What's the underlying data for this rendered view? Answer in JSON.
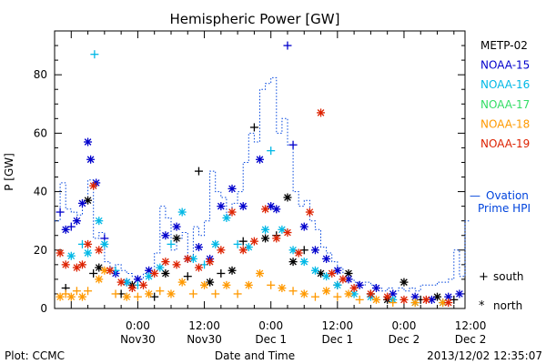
{
  "chart_data": {
    "type": "scatter",
    "title": "Hemispheric Power [GW]",
    "xlabel": "Date and Time",
    "ylabel": "P [GW]",
    "xlim_hours": [
      -15,
      59
    ],
    "ylim": [
      0,
      95
    ],
    "y_ticks": [
      0,
      20,
      40,
      60,
      80
    ],
    "x_ticks": [
      {
        "h": 0,
        "top": "0:00",
        "bottom": "Nov30"
      },
      {
        "h": 12,
        "top": "12:00",
        "bottom": "Nov30"
      },
      {
        "h": 24,
        "top": "0:00",
        "bottom": "Dec 1"
      },
      {
        "h": 36,
        "top": "12:00",
        "bottom": "Dec 1"
      },
      {
        "h": 48,
        "top": "0:00",
        "bottom": "Dec 2"
      },
      {
        "h": 60,
        "top": "12:00",
        "bottom": "Dec 2"
      }
    ],
    "footer_left": "Plot: CCMC",
    "footer_right": "2013/12/02 12:35:07",
    "markers": {
      "south": "+",
      "north": "*"
    },
    "marker_legend": [
      {
        "symbol": "+",
        "label": "south"
      },
      {
        "symbol": "*",
        "label": "north"
      }
    ],
    "series": [
      {
        "name": "METP-02",
        "color": "#000000",
        "points": [
          {
            "x": -13,
            "y": 7,
            "m": "+"
          },
          {
            "x": -9,
            "y": 37,
            "m": "*"
          },
          {
            "x": -8,
            "y": 12,
            "m": "+"
          },
          {
            "x": -7,
            "y": 14,
            "m": "*"
          },
          {
            "x": -3,
            "y": 5,
            "m": "+"
          },
          {
            "x": -1,
            "y": 8,
            "m": "*"
          },
          {
            "x": 3,
            "y": 4,
            "m": "+"
          },
          {
            "x": 5,
            "y": 12,
            "m": "*"
          },
          {
            "x": 7,
            "y": 24,
            "m": "*"
          },
          {
            "x": 9,
            "y": 11,
            "m": "+"
          },
          {
            "x": 11,
            "y": 47,
            "m": "+"
          },
          {
            "x": 13,
            "y": 9,
            "m": "*"
          },
          {
            "x": 15,
            "y": 12,
            "m": "+"
          },
          {
            "x": 17,
            "y": 13,
            "m": "*"
          },
          {
            "x": 19,
            "y": 23,
            "m": "+"
          },
          {
            "x": 21,
            "y": 62,
            "m": "+"
          },
          {
            "x": 23,
            "y": 24,
            "m": "*"
          },
          {
            "x": 25,
            "y": 25,
            "m": "+"
          },
          {
            "x": 27,
            "y": 38,
            "m": "*"
          },
          {
            "x": 28,
            "y": 16,
            "m": "*"
          },
          {
            "x": 30,
            "y": 20,
            "m": "+"
          },
          {
            "x": 33,
            "y": 12,
            "m": "*"
          },
          {
            "x": 36,
            "y": 8,
            "m": "+"
          },
          {
            "x": 38,
            "y": 12,
            "m": "*"
          },
          {
            "x": 42,
            "y": 5,
            "m": "+"
          },
          {
            "x": 45,
            "y": 3,
            "m": "*"
          },
          {
            "x": 48,
            "y": 9,
            "m": "*"
          },
          {
            "x": 51,
            "y": 3,
            "m": "+"
          },
          {
            "x": 54,
            "y": 4,
            "m": "*"
          },
          {
            "x": 57,
            "y": 3,
            "m": "+"
          }
        ]
      },
      {
        "name": "NOAA-15",
        "color": "#0000cc",
        "points": [
          {
            "x": -14,
            "y": 33,
            "m": "+"
          },
          {
            "x": -13,
            "y": 27,
            "m": "*"
          },
          {
            "x": -12,
            "y": 28,
            "m": "+"
          },
          {
            "x": -11,
            "y": 30,
            "m": "*"
          },
          {
            "x": -10,
            "y": 36,
            "m": "*"
          },
          {
            "x": -9,
            "y": 57,
            "m": "*"
          },
          {
            "x": -8.5,
            "y": 51,
            "m": "*"
          },
          {
            "x": -7.5,
            "y": 43,
            "m": "*"
          },
          {
            "x": -6,
            "y": 24,
            "m": "+"
          },
          {
            "x": -4,
            "y": 12,
            "m": "*"
          },
          {
            "x": -2,
            "y": 9,
            "m": "*"
          },
          {
            "x": 0,
            "y": 10,
            "m": "*"
          },
          {
            "x": 2,
            "y": 13,
            "m": "*"
          },
          {
            "x": 5,
            "y": 25,
            "m": "*"
          },
          {
            "x": 7,
            "y": 28,
            "m": "*"
          },
          {
            "x": 9,
            "y": 17,
            "m": "*"
          },
          {
            "x": 11,
            "y": 21,
            "m": "*"
          },
          {
            "x": 13,
            "y": 17,
            "m": "*"
          },
          {
            "x": 15,
            "y": 35,
            "m": "*"
          },
          {
            "x": 17,
            "y": 41,
            "m": "*"
          },
          {
            "x": 19,
            "y": 35,
            "m": "*"
          },
          {
            "x": 22,
            "y": 51,
            "m": "*"
          },
          {
            "x": 24,
            "y": 35,
            "m": "*"
          },
          {
            "x": 25,
            "y": 34,
            "m": "*"
          },
          {
            "x": 27,
            "y": 90,
            "m": "+"
          },
          {
            "x": 28,
            "y": 56,
            "m": "+"
          },
          {
            "x": 30,
            "y": 28,
            "m": "*"
          },
          {
            "x": 32,
            "y": 20,
            "m": "*"
          },
          {
            "x": 34,
            "y": 17,
            "m": "*"
          },
          {
            "x": 36,
            "y": 13,
            "m": "*"
          },
          {
            "x": 38,
            "y": 10,
            "m": "*"
          },
          {
            "x": 40,
            "y": 8,
            "m": "*"
          },
          {
            "x": 43,
            "y": 7,
            "m": "*"
          },
          {
            "x": 46,
            "y": 5,
            "m": "*"
          },
          {
            "x": 50,
            "y": 4,
            "m": "*"
          },
          {
            "x": 53,
            "y": 3,
            "m": "*"
          },
          {
            "x": 56,
            "y": 4,
            "m": "*"
          },
          {
            "x": 58,
            "y": 5,
            "m": "*"
          }
        ]
      },
      {
        "name": "NOAA-16",
        "color": "#00b8e6",
        "points": [
          {
            "x": -12,
            "y": 18,
            "m": "*"
          },
          {
            "x": -10,
            "y": 22,
            "m": "+"
          },
          {
            "x": -9,
            "y": 19,
            "m": "*"
          },
          {
            "x": -7.8,
            "y": 87,
            "m": "+"
          },
          {
            "x": -7,
            "y": 30,
            "m": "*"
          },
          {
            "x": -6,
            "y": 22,
            "m": "*"
          },
          {
            "x": -4,
            "y": 13,
            "m": "+"
          },
          {
            "x": -2,
            "y": 9,
            "m": "*"
          },
          {
            "x": 0,
            "y": 8,
            "m": "+"
          },
          {
            "x": 2,
            "y": 11,
            "m": "*"
          },
          {
            "x": 4,
            "y": 14,
            "m": "*"
          },
          {
            "x": 6,
            "y": 22,
            "m": "+"
          },
          {
            "x": 8,
            "y": 33,
            "m": "*"
          },
          {
            "x": 10,
            "y": 17,
            "m": "*"
          },
          {
            "x": 12,
            "y": 15,
            "m": "+"
          },
          {
            "x": 14,
            "y": 22,
            "m": "*"
          },
          {
            "x": 16,
            "y": 31,
            "m": "*"
          },
          {
            "x": 18,
            "y": 22,
            "m": "+"
          },
          {
            "x": 20,
            "y": 21,
            "m": "*"
          },
          {
            "x": 23,
            "y": 27,
            "m": "*"
          },
          {
            "x": 24,
            "y": 54,
            "m": "+"
          },
          {
            "x": 26,
            "y": 27,
            "m": "*"
          },
          {
            "x": 28,
            "y": 20,
            "m": "*"
          },
          {
            "x": 30,
            "y": 16,
            "m": "*"
          },
          {
            "x": 32,
            "y": 13,
            "m": "*"
          },
          {
            "x": 34,
            "y": 11,
            "m": "*"
          },
          {
            "x": 36,
            "y": 8,
            "m": "*"
          },
          {
            "x": 39,
            "y": 5,
            "m": "*"
          },
          {
            "x": 42,
            "y": 4,
            "m": "*"
          },
          {
            "x": 46,
            "y": 3,
            "m": "*"
          },
          {
            "x": 50,
            "y": 2,
            "m": "*"
          },
          {
            "x": 55,
            "y": 2,
            "m": "*"
          }
        ]
      },
      {
        "name": "NOAA-17",
        "color": "#33dd66",
        "points": []
      },
      {
        "name": "NOAA-18",
        "color": "#ff9900",
        "points": [
          {
            "x": -14,
            "y": 4,
            "m": "*"
          },
          {
            "x": -13,
            "y": 5,
            "m": "+"
          },
          {
            "x": -12,
            "y": 4,
            "m": "*"
          },
          {
            "x": -11,
            "y": 6,
            "m": "+"
          },
          {
            "x": -10,
            "y": 4,
            "m": "*"
          },
          {
            "x": -9,
            "y": 6,
            "m": "+"
          },
          {
            "x": -7,
            "y": 10,
            "m": "*"
          },
          {
            "x": -6,
            "y": 13,
            "m": "*"
          },
          {
            "x": -4,
            "y": 5,
            "m": "+"
          },
          {
            "x": -2,
            "y": 4,
            "m": "*"
          },
          {
            "x": 0,
            "y": 4,
            "m": "+"
          },
          {
            "x": 2,
            "y": 5,
            "m": "*"
          },
          {
            "x": 4,
            "y": 6,
            "m": "+"
          },
          {
            "x": 6,
            "y": 5,
            "m": "*"
          },
          {
            "x": 8,
            "y": 9,
            "m": "*"
          },
          {
            "x": 10,
            "y": 5,
            "m": "+"
          },
          {
            "x": 12,
            "y": 8,
            "m": "*"
          },
          {
            "x": 14,
            "y": 5,
            "m": "+"
          },
          {
            "x": 16,
            "y": 8,
            "m": "*"
          },
          {
            "x": 18,
            "y": 5,
            "m": "+"
          },
          {
            "x": 20,
            "y": 8,
            "m": "*"
          },
          {
            "x": 22,
            "y": 12,
            "m": "*"
          },
          {
            "x": 24,
            "y": 8,
            "m": "+"
          },
          {
            "x": 26,
            "y": 7,
            "m": "*"
          },
          {
            "x": 28,
            "y": 6,
            "m": "+"
          },
          {
            "x": 30,
            "y": 5,
            "m": "*"
          },
          {
            "x": 32,
            "y": 4,
            "m": "+"
          },
          {
            "x": 34,
            "y": 6,
            "m": "*"
          },
          {
            "x": 36,
            "y": 4,
            "m": "+"
          },
          {
            "x": 38,
            "y": 5,
            "m": "*"
          },
          {
            "x": 40,
            "y": 3,
            "m": "+"
          },
          {
            "x": 43,
            "y": 3,
            "m": "*"
          },
          {
            "x": 46,
            "y": 2,
            "m": "+"
          },
          {
            "x": 50,
            "y": 2,
            "m": "*"
          },
          {
            "x": 55,
            "y": 2,
            "m": "*"
          }
        ]
      },
      {
        "name": "NOAA-19",
        "color": "#dd2200",
        "points": [
          {
            "x": -14,
            "y": 19,
            "m": "*"
          },
          {
            "x": -13,
            "y": 15,
            "m": "*"
          },
          {
            "x": -11,
            "y": 14,
            "m": "*"
          },
          {
            "x": -10,
            "y": 15,
            "m": "*"
          },
          {
            "x": -9,
            "y": 22,
            "m": "*"
          },
          {
            "x": -8,
            "y": 42,
            "m": "*"
          },
          {
            "x": -7,
            "y": 20,
            "m": "*"
          },
          {
            "x": -5,
            "y": 13,
            "m": "*"
          },
          {
            "x": -3,
            "y": 9,
            "m": "*"
          },
          {
            "x": -1,
            "y": 7,
            "m": "*"
          },
          {
            "x": 1,
            "y": 8,
            "m": "*"
          },
          {
            "x": 3,
            "y": 12,
            "m": "*"
          },
          {
            "x": 5,
            "y": 16,
            "m": "*"
          },
          {
            "x": 7,
            "y": 15,
            "m": "*"
          },
          {
            "x": 9,
            "y": 17,
            "m": "*"
          },
          {
            "x": 11,
            "y": 14,
            "m": "*"
          },
          {
            "x": 13,
            "y": 16,
            "m": "*"
          },
          {
            "x": 15,
            "y": 20,
            "m": "*"
          },
          {
            "x": 17,
            "y": 33,
            "m": "*"
          },
          {
            "x": 19,
            "y": 20,
            "m": "*"
          },
          {
            "x": 21,
            "y": 23,
            "m": "*"
          },
          {
            "x": 23,
            "y": 34,
            "m": "*"
          },
          {
            "x": 25,
            "y": 24,
            "m": "*"
          },
          {
            "x": 27,
            "y": 26,
            "m": "*"
          },
          {
            "x": 29,
            "y": 19,
            "m": "*"
          },
          {
            "x": 31,
            "y": 33,
            "m": "*"
          },
          {
            "x": 33,
            "y": 67,
            "m": "*"
          },
          {
            "x": 35,
            "y": 12,
            "m": "*"
          },
          {
            "x": 37,
            "y": 10,
            "m": "*"
          },
          {
            "x": 39,
            "y": 7,
            "m": "*"
          },
          {
            "x": 42,
            "y": 5,
            "m": "*"
          },
          {
            "x": 45,
            "y": 4,
            "m": "*"
          },
          {
            "x": 48,
            "y": 3,
            "m": "*"
          },
          {
            "x": 52,
            "y": 3,
            "m": "*"
          },
          {
            "x": 56,
            "y": 2,
            "m": "*"
          }
        ]
      }
    ],
    "ovation": {
      "label_line1": "Ovation",
      "label_line2": "Prime HPI",
      "color": "#0044dd",
      "style": "dotted-step",
      "x": [
        -15,
        -14,
        -13,
        -12,
        -11,
        -10,
        -9,
        -8,
        -7,
        -6,
        -5,
        -4,
        -3,
        -2,
        -1,
        0,
        1,
        2,
        3,
        4,
        5,
        6,
        7,
        8,
        9,
        10,
        11,
        12,
        13,
        14,
        15,
        16,
        17,
        18,
        19,
        20,
        21,
        22,
        23,
        24,
        25,
        26,
        27,
        28,
        29,
        30,
        31,
        32,
        33,
        34,
        35,
        36,
        37,
        38,
        39,
        40,
        41,
        42,
        43,
        44,
        45,
        46,
        47,
        48,
        49,
        50,
        51,
        52,
        53,
        54,
        55,
        56,
        57,
        58,
        59
      ],
      "y": [
        30,
        43,
        34,
        33,
        32,
        36,
        44,
        24,
        26,
        16,
        14,
        15,
        13,
        12,
        11,
        10,
        12,
        13,
        19,
        35,
        31,
        20,
        24,
        26,
        17,
        28,
        25,
        30,
        47,
        40,
        38,
        32,
        36,
        40,
        50,
        60,
        57,
        75,
        77,
        79,
        60,
        65,
        56,
        40,
        35,
        37,
        30,
        27,
        21,
        19,
        16,
        14,
        12,
        10,
        9,
        8,
        9,
        8,
        7,
        6,
        7,
        6,
        7,
        6,
        7,
        6,
        8,
        8,
        8,
        9,
        9,
        10,
        20,
        11,
        30
      ]
    }
  }
}
